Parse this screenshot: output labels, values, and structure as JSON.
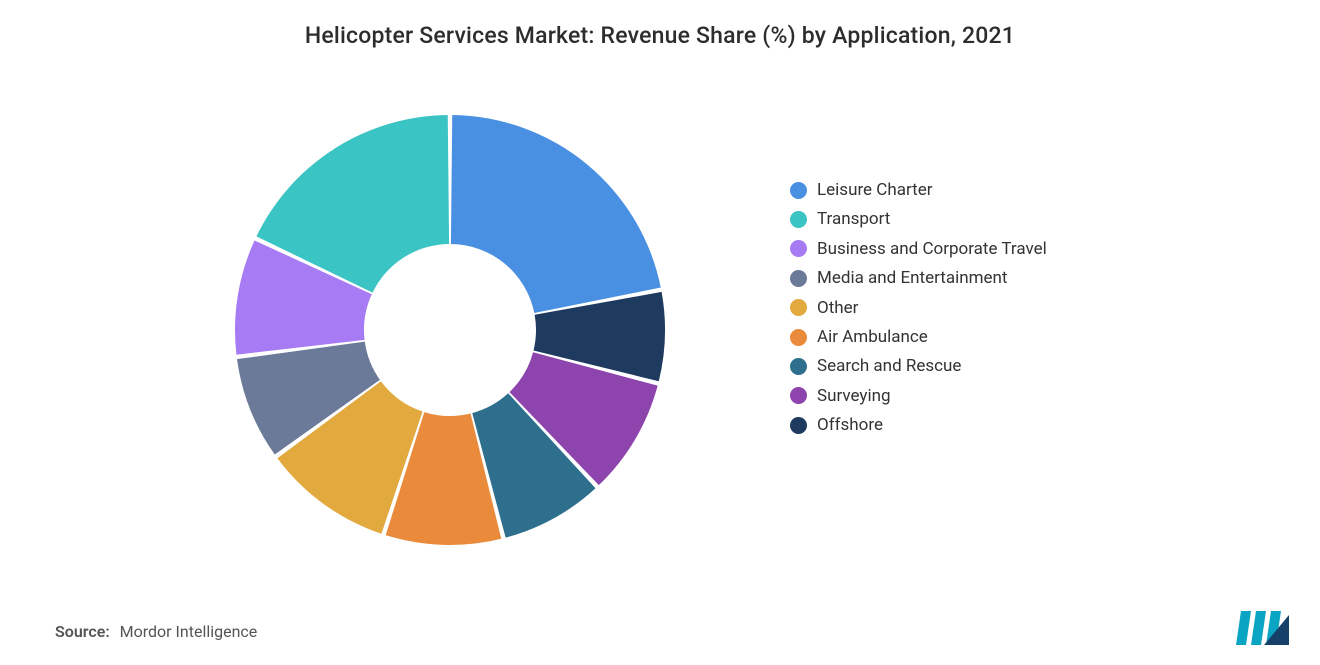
{
  "title": "Helicopter Services Market: Revenue Share (%) by Application, 2021",
  "source_label": "Source:",
  "source_value": "Mordor Intelligence",
  "chart": {
    "type": "donut",
    "start_angle_deg": 0,
    "inner_radius_ratio": 0.4,
    "background_color": "#ffffff",
    "slice_gap_deg": 1.2,
    "slices": [
      {
        "label": "Leisure Charter",
        "value": 22,
        "color": "#4a90e2"
      },
      {
        "label": "Offshore",
        "value": 7,
        "color": "#1f3a5f"
      },
      {
        "label": "Surveying",
        "value": 9,
        "color": "#8e44ad"
      },
      {
        "label": "Search and Rescue",
        "value": 8,
        "color": "#2e6f8e"
      },
      {
        "label": "Air Ambulance",
        "value": 9,
        "color": "#e98b3a"
      },
      {
        "label": "Other",
        "value": 10,
        "color": "#e1a93e"
      },
      {
        "label": "Media and Entertainment",
        "value": 8,
        "color": "#6b7a99"
      },
      {
        "label": "Business and Corporate Travel",
        "value": 9,
        "color": "#a77bf3"
      },
      {
        "label": "Transport",
        "value": 18,
        "color": "#3bc4c4"
      }
    ],
    "legend_order": [
      "Leisure Charter",
      "Transport",
      "Business and Corporate Travel",
      "Media and Entertainment",
      "Other",
      "Air Ambulance",
      "Search and Rescue",
      "Surveying",
      "Offshore"
    ],
    "legend_fontsize": 17,
    "legend_text_color": "#333333",
    "title_fontsize": 23,
    "title_color": "#2d2d2d"
  },
  "logo": {
    "bar_color": "#0aa5c2",
    "triangle_color": "#15406a"
  }
}
